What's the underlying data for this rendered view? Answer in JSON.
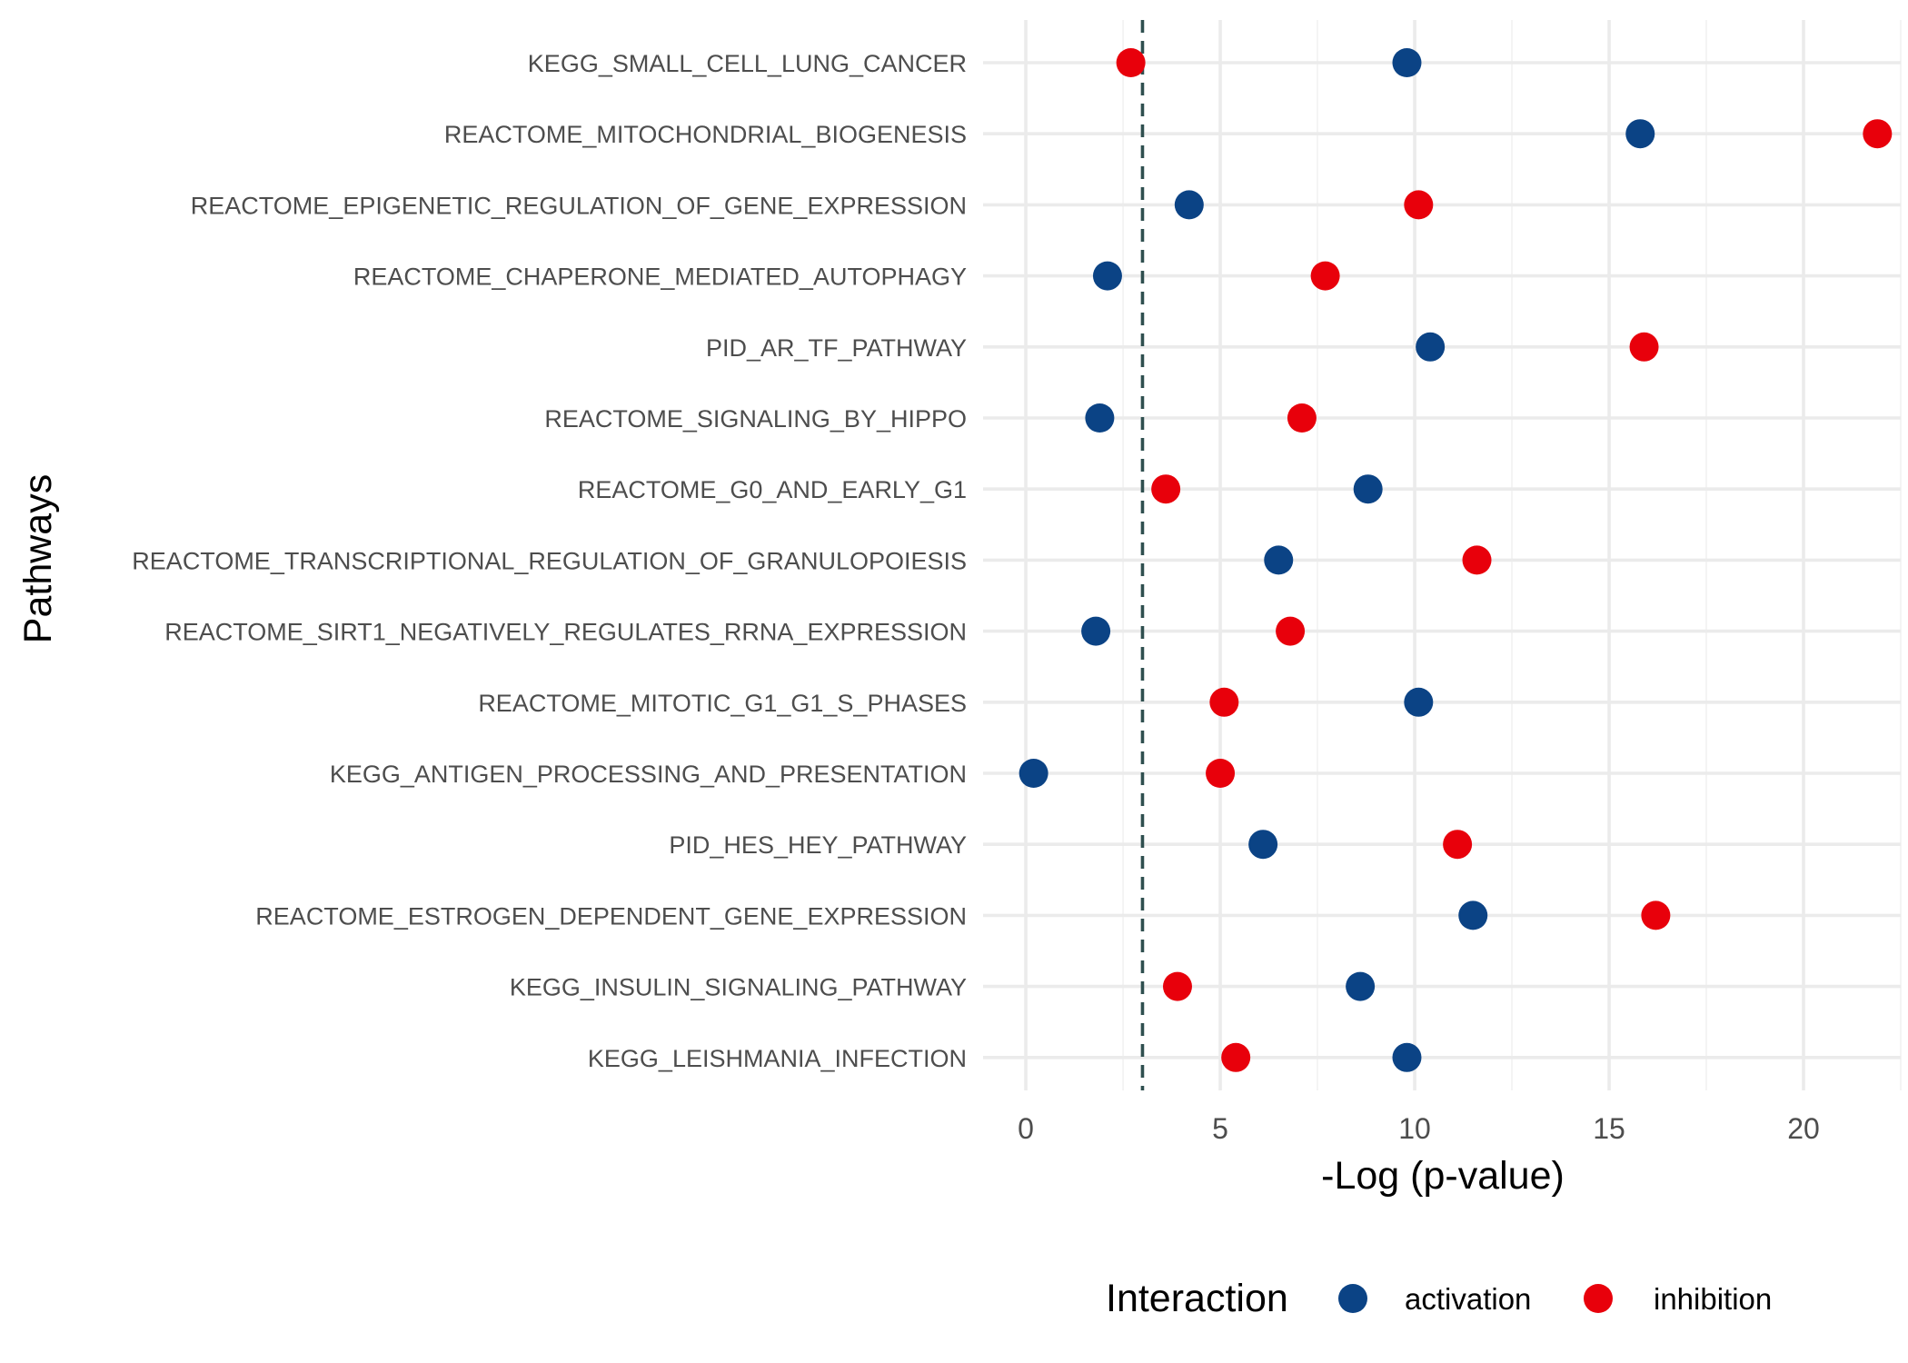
{
  "chart_data": {
    "type": "scatter",
    "title": "",
    "xlabel": "-Log (p-value)",
    "ylabel": "Pathways",
    "xlim": [
      -1.1,
      22.5
    ],
    "x_ticks": [
      "0",
      "5",
      "10",
      "15",
      "20"
    ],
    "x_tick_values": [
      0,
      5,
      10,
      15,
      20
    ],
    "threshold_line": 3.0,
    "threshold_color": "#2f4f4f",
    "grid": true,
    "legend_title": "Interaction",
    "legend_position": "bottom",
    "categories": [
      "KEGG_SMALL_CELL_LUNG_CANCER",
      "REACTOME_MITOCHONDRIAL_BIOGENESIS",
      "REACTOME_EPIGENETIC_REGULATION_OF_GENE_EXPRESSION",
      "REACTOME_CHAPERONE_MEDIATED_AUTOPHAGY",
      "PID_AR_TF_PATHWAY",
      "REACTOME_SIGNALING_BY_HIPPO",
      "REACTOME_G0_AND_EARLY_G1",
      "REACTOME_TRANSCRIPTIONAL_REGULATION_OF_GRANULOPOIESIS",
      "REACTOME_SIRT1_NEGATIVELY_REGULATES_RRNA_EXPRESSION",
      "REACTOME_MITOTIC_G1_G1_S_PHASES",
      "KEGG_ANTIGEN_PROCESSING_AND_PRESENTATION",
      "PID_HES_HEY_PATHWAY",
      "REACTOME_ESTROGEN_DEPENDENT_GENE_EXPRESSION",
      "KEGG_INSULIN_SIGNALING_PATHWAY",
      "KEGG_LEISHMANIA_INFECTION"
    ],
    "series": [
      {
        "name": "activation",
        "color": "#0b4385",
        "values": [
          9.8,
          15.8,
          4.2,
          2.1,
          10.4,
          1.9,
          8.8,
          6.5,
          1.8,
          10.1,
          0.2,
          6.1,
          11.5,
          8.6,
          9.8
        ]
      },
      {
        "name": "inhibition",
        "color": "#e8000b",
        "values": [
          2.7,
          21.9,
          10.1,
          7.7,
          15.9,
          7.1,
          3.6,
          11.6,
          6.8,
          5.1,
          5.0,
          11.1,
          16.2,
          3.9,
          5.4
        ]
      }
    ]
  }
}
